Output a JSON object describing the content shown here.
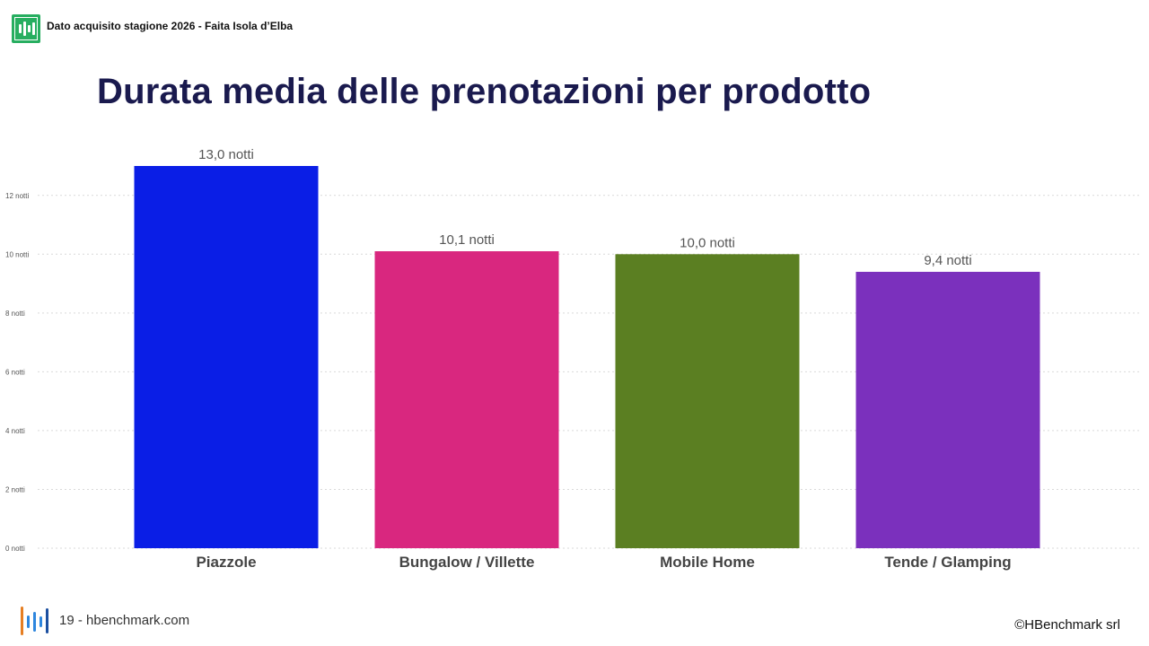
{
  "header": {
    "logo_icon": "hbenchmark-logo-icon",
    "text": "Dato acquisito stagione 2026 - Faita Isola d’Elba"
  },
  "title": "Durata media delle prenotazioni per prodotto",
  "chart_data": {
    "type": "bar",
    "categories": [
      "Piazzole",
      "Bungalow / Villette",
      "Mobile Home",
      "Tende / Glamping"
    ],
    "values": [
      13.0,
      10.1,
      10.0,
      9.4
    ],
    "data_labels": [
      "13,0 notti",
      "10,1 notti",
      "10,0 notti",
      "9,4 notti"
    ],
    "colors": [
      "#0a1ee6",
      "#d9277f",
      "#5b7f22",
      "#7b30bd"
    ],
    "yticks": [
      0,
      2,
      4,
      6,
      8,
      10,
      12
    ],
    "ytick_labels": [
      "0 notti",
      "2 notti",
      "4 notti",
      "6 notti",
      "8 notti",
      "10 notti",
      "12 notti"
    ],
    "ylim": [
      0,
      13
    ],
    "grid": true,
    "xlabel": "",
    "ylabel": ""
  },
  "footer": {
    "logo_icon": "hbenchmark-footer-logo-icon",
    "text": "19 - hbenchmark.com",
    "copyright": "©HBenchmark srl"
  }
}
